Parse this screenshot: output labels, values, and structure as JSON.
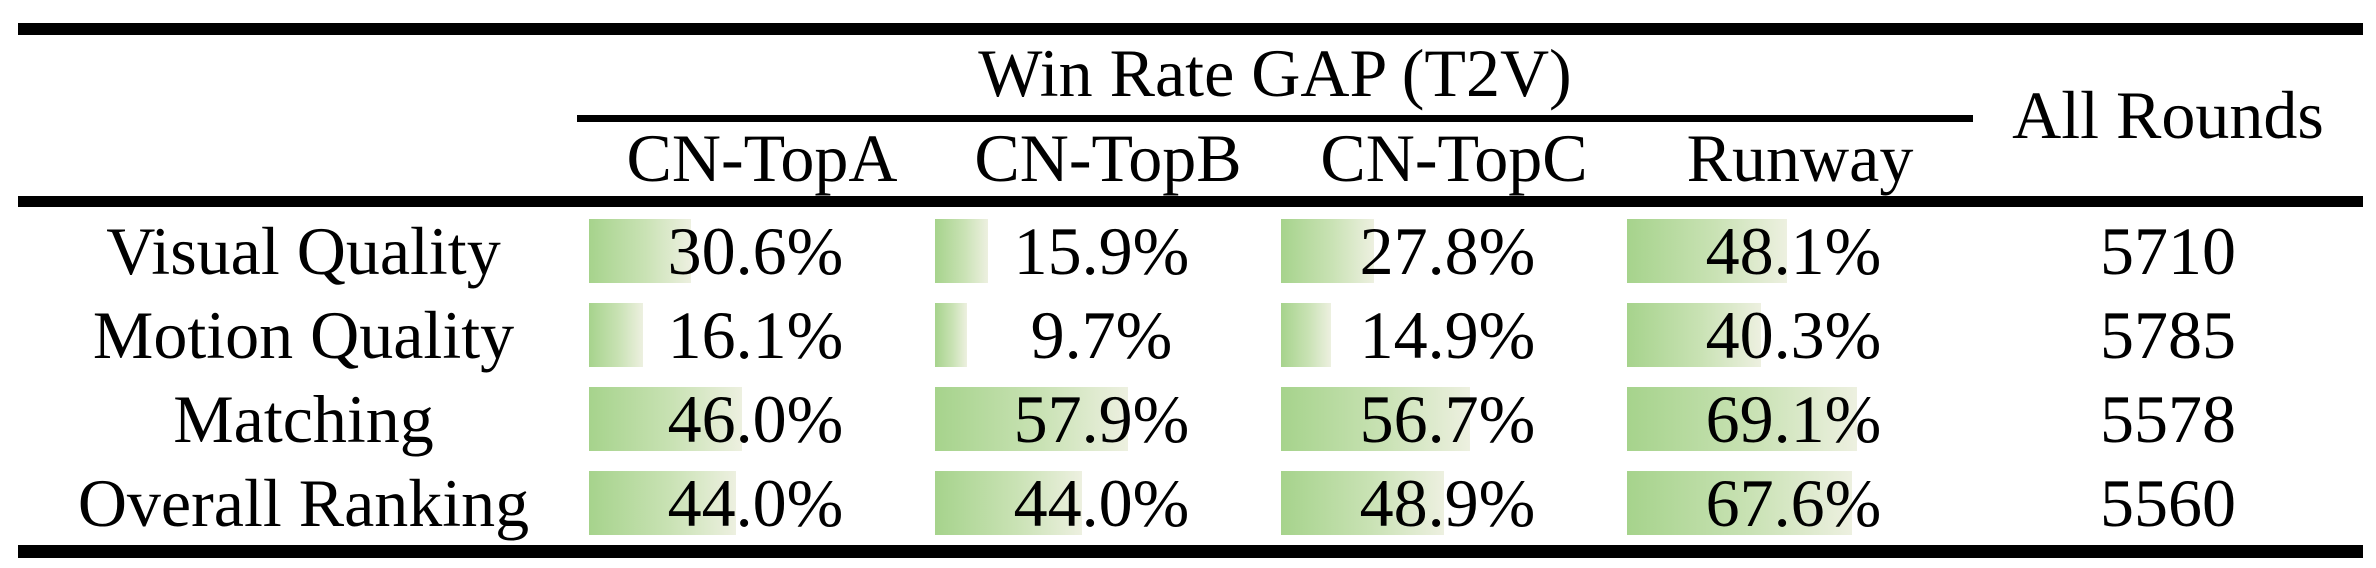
{
  "table": {
    "group_header": "Win Rate GAP (T2V)",
    "all_rounds_header": "All Rounds",
    "columns": [
      "CN-TopA",
      "CN-TopB",
      "CN-TopC",
      "Runway"
    ],
    "rows": [
      {
        "label": "Visual Quality",
        "values": [
          30.6,
          15.9,
          27.8,
          48.1
        ],
        "display": [
          "30.6%",
          "15.9%",
          "27.8%",
          "48.1%"
        ],
        "all_rounds": "5710"
      },
      {
        "label": "Motion Quality",
        "values": [
          16.1,
          9.7,
          14.9,
          40.3
        ],
        "display": [
          "16.1%",
          "9.7%",
          "14.9%",
          "40.3%"
        ],
        "all_rounds": "5785"
      },
      {
        "label": "Matching",
        "values": [
          46.0,
          57.9,
          56.7,
          69.1
        ],
        "display": [
          "46.0%",
          "57.9%",
          "56.7%",
          "69.1%"
        ],
        "all_rounds": "5578"
      },
      {
        "label": "Overall Ranking",
        "values": [
          44.0,
          44.0,
          48.9,
          67.6
        ],
        "display": [
          "44.0%",
          "44.0%",
          "48.9%",
          "67.6%"
        ],
        "all_rounds": "5560"
      }
    ],
    "colors": {
      "bar_green": "#a6d38c",
      "bar_fade": "#edf0e0",
      "rule_black": "#000000",
      "text": "#000000"
    }
  },
  "chart_data": {
    "type": "table",
    "title": "Win Rate GAP (T2V)",
    "categories": [
      "Visual Quality",
      "Motion Quality",
      "Matching",
      "Overall Ranking"
    ],
    "series": [
      {
        "name": "CN-TopA",
        "values": [
          30.6,
          16.1,
          46.0,
          44.0
        ]
      },
      {
        "name": "CN-TopB",
        "values": [
          15.9,
          9.7,
          57.9,
          44.0
        ]
      },
      {
        "name": "CN-TopC",
        "values": [
          27.8,
          14.9,
          56.7,
          48.9
        ]
      },
      {
        "name": "Runway",
        "values": [
          48.1,
          40.3,
          69.1,
          67.6
        ]
      },
      {
        "name": "All Rounds",
        "values": [
          5710,
          5785,
          5578,
          5560
        ]
      }
    ],
    "value_unit": "%",
    "bar_scale_max": 100,
    "layout": "in-cell horizontal data bars, left-aligned, gradient green fading right"
  }
}
